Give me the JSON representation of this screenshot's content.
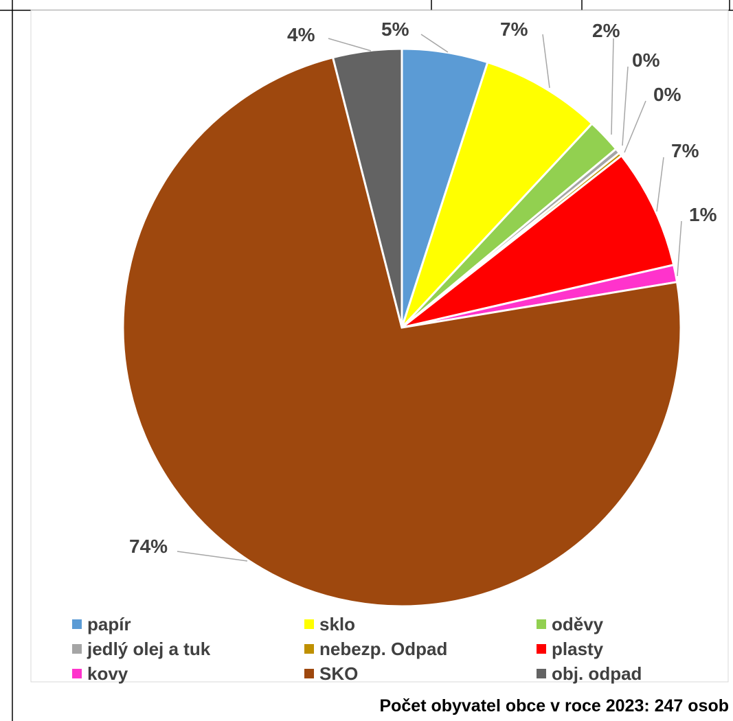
{
  "chart_data": {
    "type": "pie",
    "title": "",
    "start_angle_deg": 0,
    "direction": "clockwise",
    "slices": [
      {
        "name": "papír",
        "value": 5,
        "label": "5%",
        "color": "#5B9BD5"
      },
      {
        "name": "sklo",
        "value": 7,
        "label": "7%",
        "color": "#FFFF00"
      },
      {
        "name": "oděvy",
        "value": 2,
        "label": "2%",
        "color": "#92D050"
      },
      {
        "name": "jedlý olej a tuk",
        "value": 0.3,
        "label": "0%",
        "color": "#A5A5A5"
      },
      {
        "name": "nebezp. Odpad",
        "value": 0.2,
        "label": "0%",
        "color": "#BF9000"
      },
      {
        "name": "plasty",
        "value": 7,
        "label": "7%",
        "color": "#FF0000"
      },
      {
        "name": "kovy",
        "value": 1,
        "label": "1%",
        "color": "#FF33CC"
      },
      {
        "name": "SKO",
        "value": 74,
        "label": "74%",
        "color": "#9E480E"
      },
      {
        "name": "obj. odpad",
        "value": 4,
        "label": "4%",
        "color": "#636363"
      }
    ],
    "legend_position": "bottom",
    "legend_columns": 3
  },
  "footnote": "Počet obyvatel obce v roce 2023: 247 osob"
}
